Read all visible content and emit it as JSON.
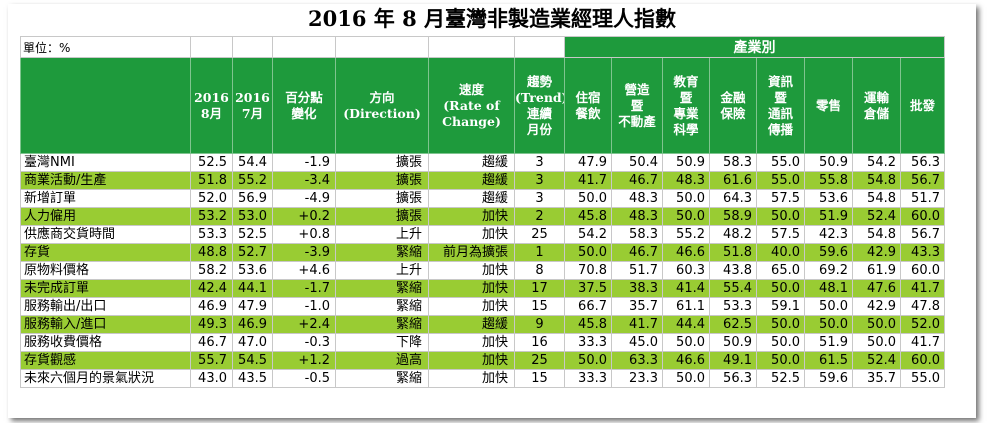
{
  "title": "2016 年 8 月臺灣非製造業經理人指數",
  "unit_label": "單位：%",
  "industry_group_label": "產業別",
  "headers": {
    "aug": [
      "2016",
      "8月"
    ],
    "jul": [
      "2016",
      "7月"
    ],
    "pct_change": [
      "百分點",
      "變化"
    ],
    "direction": [
      "方向",
      "(Direction)"
    ],
    "speed": [
      "速度",
      "(Rate of",
      "Change)"
    ],
    "trend": [
      "趨勢",
      "(Trend)",
      "連續",
      "月份"
    ],
    "industries": [
      [
        "住宿",
        "餐飲"
      ],
      [
        "營造",
        "暨",
        "不動產"
      ],
      [
        "教育",
        "暨",
        "專業",
        "科學"
      ],
      [
        "金融",
        "保險"
      ],
      [
        "資訊",
        "暨",
        "通訊",
        "傳播"
      ],
      [
        "零售"
      ],
      [
        "運輸",
        "倉儲"
      ],
      [
        "批發"
      ]
    ]
  },
  "rows": [
    {
      "name": "臺灣NMI",
      "aug": "52.5",
      "jul": "54.4",
      "change": "-1.9",
      "direction": "擴張",
      "speed": "趨緩",
      "trend": "3",
      "ind": [
        "47.9",
        "50.4",
        "50.9",
        "58.3",
        "55.0",
        "50.9",
        "54.2",
        "56.3"
      ],
      "highlight": false
    },
    {
      "name": "商業活動/生產",
      "aug": "51.8",
      "jul": "55.2",
      "change": "-3.4",
      "direction": "擴張",
      "speed": "趨緩",
      "trend": "3",
      "ind": [
        "41.7",
        "46.7",
        "48.3",
        "61.6",
        "55.0",
        "55.8",
        "54.8",
        "56.7"
      ],
      "highlight": true
    },
    {
      "name": "新增訂單",
      "aug": "52.0",
      "jul": "56.9",
      "change": "-4.9",
      "direction": "擴張",
      "speed": "趨緩",
      "trend": "3",
      "ind": [
        "50.0",
        "48.3",
        "50.0",
        "64.3",
        "57.5",
        "53.6",
        "54.8",
        "51.7"
      ],
      "highlight": false
    },
    {
      "name": "人力僱用",
      "aug": "53.2",
      "jul": "53.0",
      "change": "+0.2",
      "direction": "擴張",
      "speed": "加快",
      "trend": "2",
      "ind": [
        "45.8",
        "48.3",
        "50.0",
        "58.9",
        "50.0",
        "51.9",
        "52.4",
        "60.0"
      ],
      "highlight": true
    },
    {
      "name": "供應商交貨時間",
      "aug": "53.3",
      "jul": "52.5",
      "change": "+0.8",
      "direction": "上升",
      "speed": "加快",
      "trend": "25",
      "ind": [
        "54.2",
        "58.3",
        "55.2",
        "48.2",
        "57.5",
        "42.3",
        "54.8",
        "56.7"
      ],
      "highlight": false
    },
    {
      "name": "存貨",
      "aug": "48.8",
      "jul": "52.7",
      "change": "-3.9",
      "direction": "緊縮",
      "speed": "前月為擴張",
      "trend": "1",
      "ind": [
        "50.0",
        "46.7",
        "46.6",
        "51.8",
        "40.0",
        "59.6",
        "42.9",
        "43.3"
      ],
      "highlight": true
    },
    {
      "name": "原物料價格",
      "aug": "58.2",
      "jul": "53.6",
      "change": "+4.6",
      "direction": "上升",
      "speed": "加快",
      "trend": "8",
      "ind": [
        "70.8",
        "51.7",
        "60.3",
        "43.8",
        "65.0",
        "69.2",
        "61.9",
        "60.0"
      ],
      "highlight": false
    },
    {
      "name": "未完成訂單",
      "aug": "42.4",
      "jul": "44.1",
      "change": "-1.7",
      "direction": "緊縮",
      "speed": "加快",
      "trend": "17",
      "ind": [
        "37.5",
        "38.3",
        "41.4",
        "55.4",
        "50.0",
        "48.1",
        "47.6",
        "41.7"
      ],
      "highlight": true
    },
    {
      "name": "服務輸出/出口",
      "aug": "46.9",
      "jul": "47.9",
      "change": "-1.0",
      "direction": "緊縮",
      "speed": "加快",
      "trend": "15",
      "ind": [
        "66.7",
        "35.7",
        "61.1",
        "53.3",
        "59.1",
        "50.0",
        "42.9",
        "47.8"
      ],
      "highlight": false
    },
    {
      "name": "服務輸入/進口",
      "aug": "49.3",
      "jul": "46.9",
      "change": "+2.4",
      "direction": "緊縮",
      "speed": "趨緩",
      "trend": "9",
      "ind": [
        "45.8",
        "41.7",
        "44.4",
        "62.5",
        "50.0",
        "50.0",
        "50.0",
        "52.0"
      ],
      "highlight": true
    },
    {
      "name": "服務收費價格",
      "aug": "46.7",
      "jul": "47.0",
      "change": "-0.3",
      "direction": "下降",
      "speed": "加快",
      "trend": "16",
      "ind": [
        "33.3",
        "45.0",
        "50.0",
        "50.9",
        "50.0",
        "51.9",
        "50.0",
        "41.7"
      ],
      "highlight": false
    },
    {
      "name": "存貨觀感",
      "aug": "55.7",
      "jul": "54.5",
      "change": "+1.2",
      "direction": "過高",
      "speed": "加快",
      "trend": "25",
      "ind": [
        "50.0",
        "63.3",
        "46.6",
        "49.1",
        "50.0",
        "61.5",
        "52.4",
        "60.0"
      ],
      "highlight": true
    },
    {
      "name": "未來六個月的景氣狀況",
      "aug": "43.0",
      "jul": "43.5",
      "change": "-0.5",
      "direction": "緊縮",
      "speed": "加快",
      "trend": "15",
      "ind": [
        "33.3",
        "23.3",
        "50.0",
        "56.3",
        "52.5",
        "59.6",
        "35.7",
        "55.0"
      ],
      "highlight": false
    }
  ]
}
